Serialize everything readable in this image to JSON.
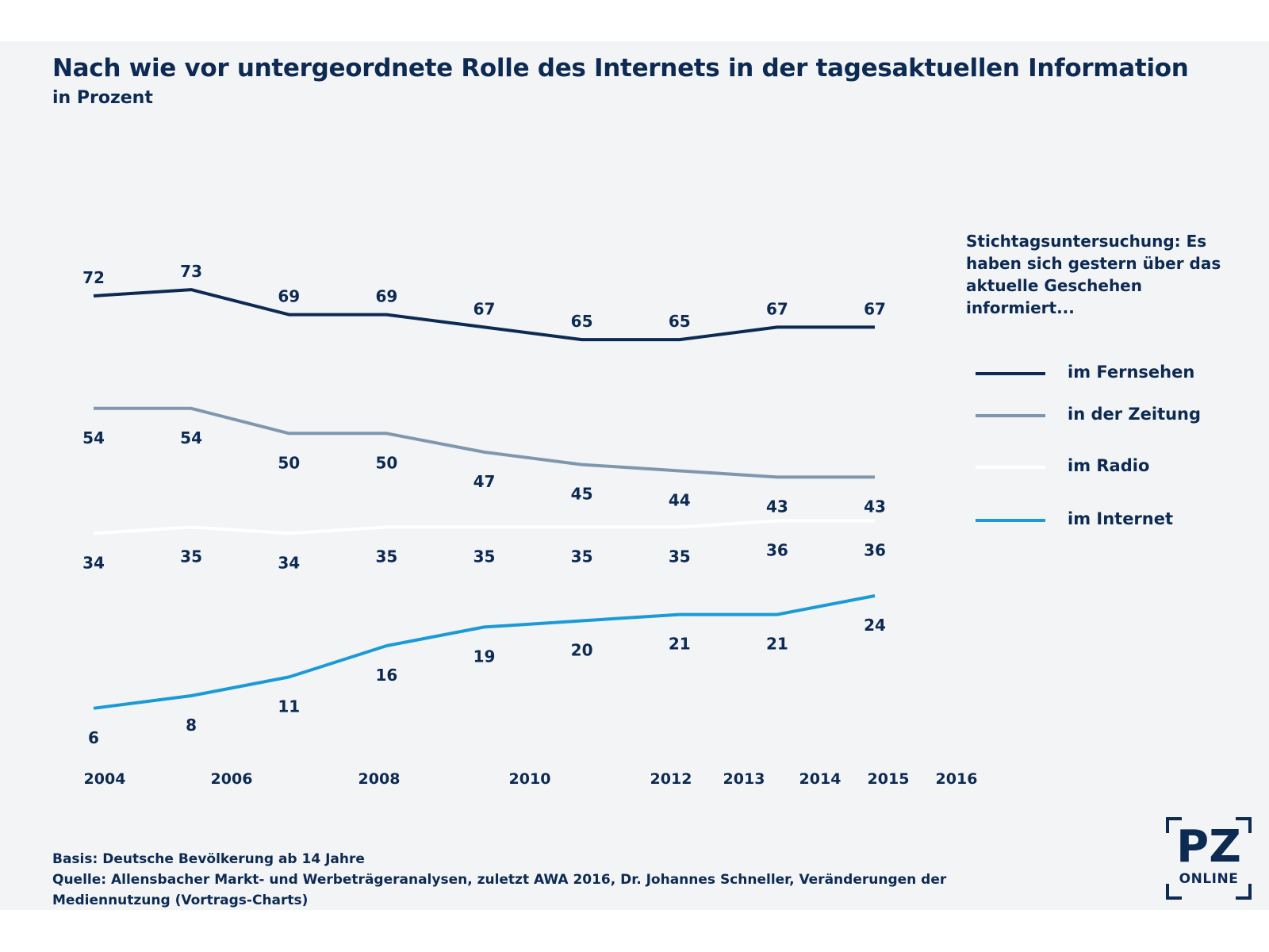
{
  "header": {
    "title": "Nach wie vor untergeordnete Rolle des Internets in der tagesaktuellen Information",
    "subtitle": "in Prozent"
  },
  "legend": {
    "title": "Stichtagsuntersuchung: Es haben sich gestern über das aktuelle Geschehen informiert...",
    "items": [
      {
        "label": "im Fernsehen",
        "color": "#0d2a52"
      },
      {
        "label": "in der Zeitung",
        "color": "#7f97ae"
      },
      {
        "label": "im Radio",
        "color": "#ffffff"
      },
      {
        "label": "im Internet",
        "color": "#1a9ad6"
      }
    ]
  },
  "chart_data": {
    "type": "line",
    "x": [
      "2004",
      "2006",
      "2008",
      "2010",
      "2012",
      "2013",
      "2014",
      "2015",
      "2016"
    ],
    "series": [
      {
        "name": "im Fernsehen",
        "color": "#0d2a52",
        "values": [
          72,
          73,
          69,
          69,
          67,
          65,
          65,
          67,
          67
        ]
      },
      {
        "name": "in der Zeitung",
        "color": "#7f97ae",
        "values": [
          54,
          54,
          50,
          50,
          47,
          45,
          44,
          43,
          43
        ]
      },
      {
        "name": "im Radio",
        "color": "#ffffff",
        "values": [
          34,
          35,
          34,
          35,
          35,
          35,
          35,
          36,
          36
        ]
      },
      {
        "name": "im Internet",
        "color": "#1a9ad6",
        "values": [
          6,
          8,
          11,
          16,
          19,
          20,
          21,
          21,
          24
        ]
      }
    ],
    "tick_labels": [
      "2004",
      "2006",
      "2008",
      "2010",
      "2012",
      "2013",
      "2014",
      "2015",
      "2016"
    ],
    "ylim": [
      0,
      80
    ],
    "grid": false,
    "legend_position": "right"
  },
  "footer": {
    "basis": "Basis: Deutsche Bevölkerung ab 14 Jahre",
    "source": "Quelle: Allensbacher Markt- und Werbeträgeranalysen, zuletzt AWA 2016, Dr. Johannes Schneller, Veränderungen der Mediennutzung (Vortrags-Charts)"
  },
  "logo": {
    "main": "PZ",
    "sub": "ONLINE"
  }
}
